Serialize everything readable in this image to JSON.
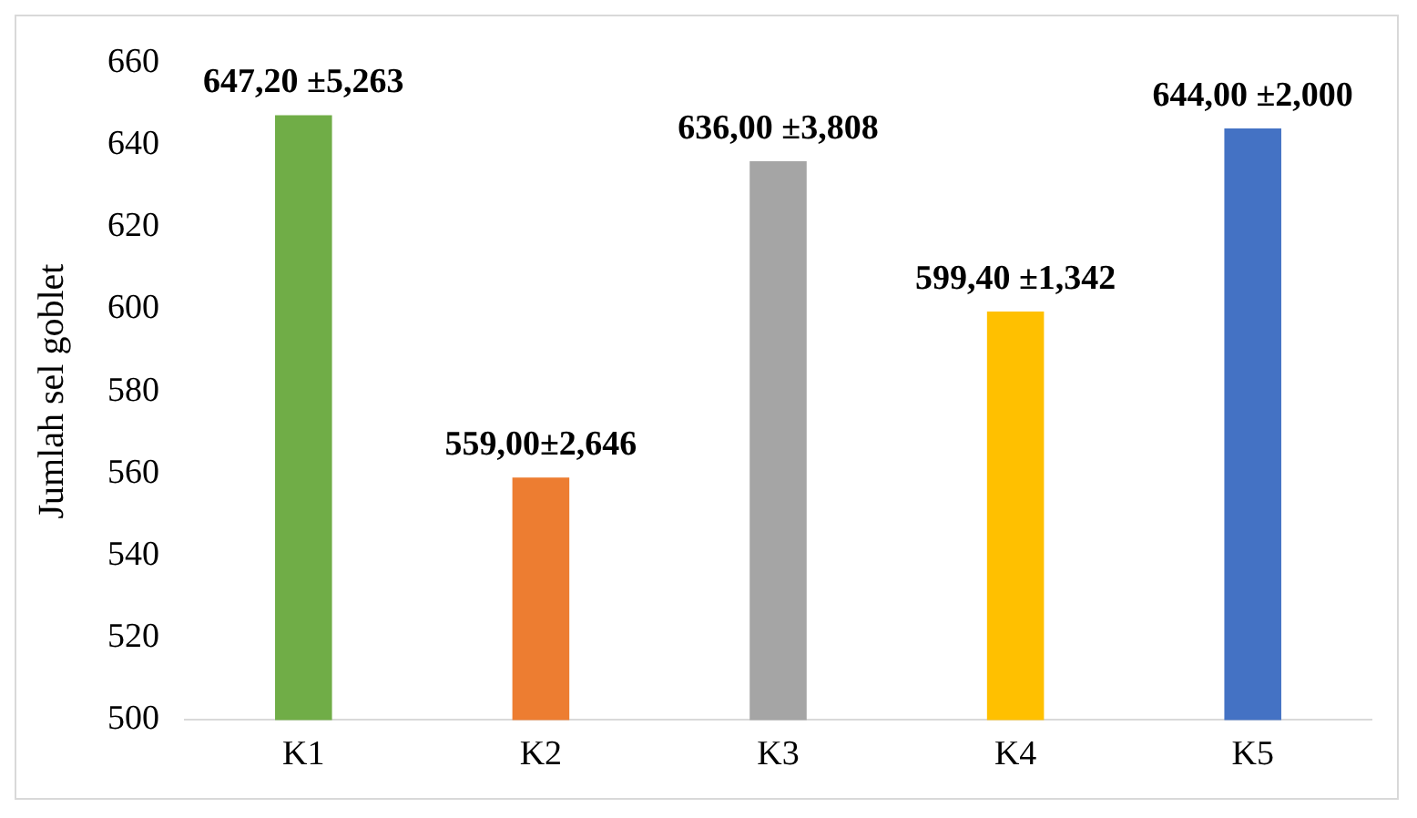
{
  "chart_data": {
    "type": "bar",
    "ylabel": "Jumlah sel goblet",
    "categories": [
      "K1",
      "K2",
      "K3",
      "K4",
      "K5"
    ],
    "values": [
      647.2,
      559,
      636,
      599.4,
      644
    ],
    "colors": [
      "#70ad47",
      "#ed7d31",
      "#a5a5a5",
      "#ffc000",
      "#4472c4"
    ],
    "value_labels": [
      "647,20 ±5,263",
      "559,00±2,646",
      "636,00 ±3,808",
      "599,40 ±1,342",
      "644,00 ±2,000"
    ],
    "ylim": [
      500,
      660
    ],
    "yticks": [
      500,
      520,
      540,
      560,
      580,
      600,
      620,
      640,
      660
    ],
    "grid": false,
    "legend": false
  }
}
